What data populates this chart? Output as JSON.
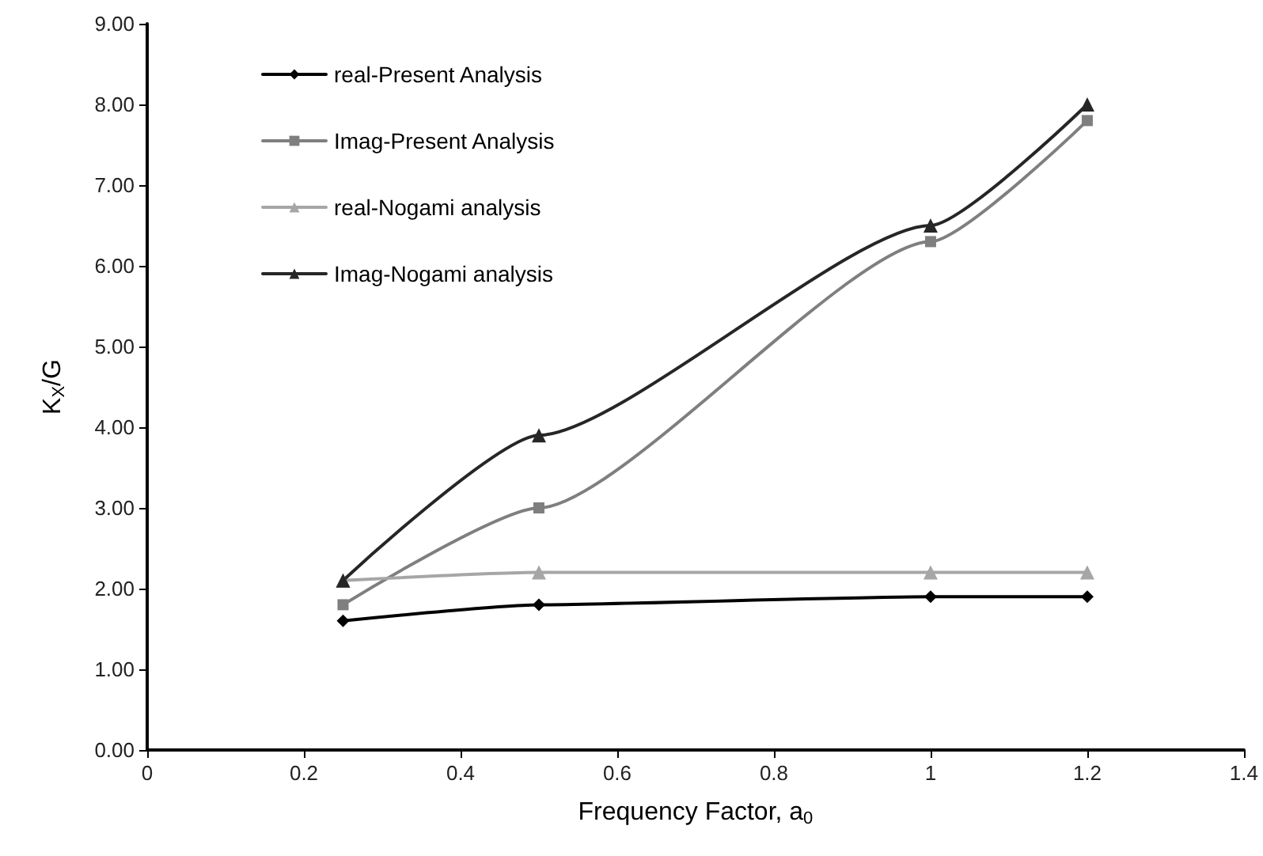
{
  "chart_data": {
    "type": "line",
    "xlabel": "Frequency Factor, a$_{0}$",
    "ylabel": "K$_{X}$/G",
    "x": [
      0.25,
      0.5,
      1,
      1.2
    ],
    "xlim": [
      0,
      1.4
    ],
    "xticks": [
      0,
      0.2,
      0.4,
      0.6,
      0.8,
      1,
      1.2,
      1.4
    ],
    "ylim": [
      0,
      9
    ],
    "yticks": [
      {
        "value": 0,
        "label": "0.00"
      },
      {
        "value": 1,
        "label": "1.00"
      },
      {
        "value": 2,
        "label": "2.00"
      },
      {
        "value": 3,
        "label": "3.00"
      },
      {
        "value": 4,
        "label": "4.00"
      },
      {
        "value": 5,
        "label": "5.00"
      },
      {
        "value": 6,
        "label": "6.00"
      },
      {
        "value": 7,
        "label": "7.00"
      },
      {
        "value": 8,
        "label": "8.00"
      },
      {
        "value": 9,
        "label": "9.00"
      }
    ],
    "grid": false,
    "legend": "top left",
    "line_style": "solid",
    "series": [
      {
        "name": "real-Present Analysis",
        "color": "#000000",
        "marker": "diamond",
        "values": [
          1.6,
          1.8,
          1.9,
          1.9
        ]
      },
      {
        "name": "Imag-Present Analysis",
        "color": "#7f7f7f",
        "marker": "square",
        "values": [
          1.8,
          3.0,
          6.3,
          7.8
        ]
      },
      {
        "name": "real-Nogami analysis",
        "color": "#a6a6a6",
        "marker": "triangle",
        "values": [
          2.1,
          2.2,
          2.2,
          2.2
        ]
      },
      {
        "name": "Imag-Nogami analysis",
        "color": "#262626",
        "marker": "triangle",
        "values": [
          2.1,
          3.9,
          6.5,
          8.0
        ]
      }
    ]
  }
}
